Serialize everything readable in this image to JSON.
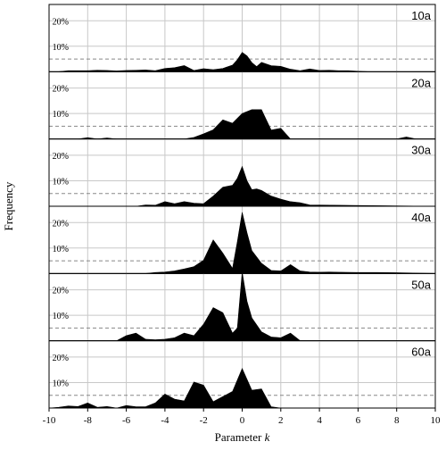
{
  "chart_data": {
    "type": "area",
    "xlabel": "Parameter k",
    "ylabel": "Frequency",
    "xlim": [
      -10,
      10
    ],
    "ylim": [
      0,
      25
    ],
    "x_ticks": [
      -10,
      -8,
      -6,
      -4,
      -2,
      0,
      2,
      4,
      6,
      8,
      10
    ],
    "x_tick_labels": [
      "-10",
      "-8",
      "-6",
      "-4",
      "-2",
      "0",
      "2",
      "4",
      "6",
      "8",
      "10"
    ],
    "y_ticks": [
      10,
      20
    ],
    "y_tick_labels": [
      "10%",
      "20%"
    ],
    "reference_line": 5,
    "grid": true,
    "series_color": "#000000",
    "grid_color": "#c8c8c8",
    "reference_color": "#888888",
    "panels": [
      {
        "label": "10a",
        "x": [
          -10,
          -9.5,
          -9,
          -8.5,
          -8,
          -7.5,
          -7,
          -6.5,
          -6,
          -5.5,
          -5,
          -4.5,
          -4,
          -3.5,
          -3,
          -2.5,
          -2,
          -1.5,
          -1,
          -0.5,
          -0.25,
          0,
          0.25,
          0.5,
          0.75,
          1,
          1.5,
          2,
          2.5,
          3,
          3.5,
          4,
          4.5,
          5,
          5.5,
          6,
          6.5,
          7,
          8,
          9,
          10
        ],
        "values": [
          0,
          0,
          0.4,
          0.4,
          0.4,
          0.6,
          0.5,
          0.3,
          0.5,
          0.6,
          0.7,
          0.4,
          1.3,
          1.6,
          2.4,
          0.5,
          1.2,
          0.8,
          1.3,
          2.6,
          4.7,
          7.6,
          6.2,
          3.6,
          2.0,
          3.7,
          2.4,
          2.1,
          1.0,
          0.4,
          1.1,
          0.5,
          0.6,
          0.4,
          0.4,
          0.2,
          0,
          0,
          0,
          0,
          0
        ]
      },
      {
        "label": "20a",
        "x": [
          -10,
          -8.5,
          -8,
          -7.5,
          -7,
          -6.5,
          -3,
          -2.5,
          -2,
          -1.5,
          -1,
          -0.5,
          0,
          0.5,
          1,
          1.5,
          2,
          2.5,
          8,
          8.5,
          9,
          10
        ],
        "values": [
          0,
          0,
          0.5,
          0,
          0.4,
          0,
          0,
          0.6,
          2.0,
          3.6,
          7.5,
          6.2,
          10.0,
          11.5,
          11.5,
          3.5,
          4.2,
          0,
          0,
          0.8,
          0,
          0
        ]
      },
      {
        "label": "30a",
        "x": [
          -10,
          -5.5,
          -5,
          -4.5,
          -4,
          -3.5,
          -3,
          -2.5,
          -2,
          -1.5,
          -1,
          -0.5,
          -0.25,
          0,
          0.25,
          0.5,
          0.75,
          1,
          1.5,
          2,
          2.5,
          3,
          3.5,
          10
        ],
        "values": [
          0,
          0,
          0.5,
          0.4,
          1.8,
          1.0,
          1.8,
          1.2,
          1.0,
          4.0,
          7.5,
          8.2,
          11.0,
          15.6,
          10.0,
          6.5,
          6.8,
          6.2,
          4.0,
          2.8,
          1.8,
          1.4,
          0.5,
          0
        ]
      },
      {
        "label": "40a",
        "x": [
          -10,
          -5,
          -4.5,
          -4,
          -3.5,
          -3,
          -2.5,
          -2,
          -1.5,
          -1,
          -0.5,
          -0.25,
          0,
          0.25,
          0.5,
          1,
          1.5,
          2,
          2.5,
          3,
          3.5,
          4,
          4.5,
          5,
          6,
          7,
          8,
          10
        ],
        "values": [
          0,
          0,
          0.4,
          0.6,
          1.0,
          1.8,
          2.7,
          5.2,
          13.2,
          8.0,
          2.0,
          12.5,
          24.0,
          16.0,
          9.0,
          4.0,
          1.2,
          1.0,
          3.5,
          1.0,
          0.6,
          0.5,
          0.6,
          0.5,
          0.4,
          0.4,
          0.3,
          0
        ]
      },
      {
        "label": "50a",
        "x": [
          -10,
          -6.5,
          -6,
          -5.5,
          -5,
          -4.5,
          -4,
          -3.5,
          -3,
          -2.5,
          -2,
          -1.5,
          -1,
          -0.5,
          -0.25,
          0,
          0.25,
          0.5,
          1,
          1.5,
          2,
          2.5,
          3,
          10
        ],
        "values": [
          0,
          0,
          2.0,
          3.0,
          0.6,
          0.4,
          0.6,
          1.2,
          3.0,
          2.0,
          6.5,
          13.0,
          11.0,
          3.0,
          5.0,
          27.0,
          15.5,
          9.0,
          3.5,
          1.5,
          1.2,
          3.0,
          0,
          0
        ]
      },
      {
        "label": "60a",
        "x": [
          -10,
          -9.5,
          -9,
          -8.5,
          -8,
          -7.5,
          -7,
          -6.5,
          -6,
          -5.5,
          -5,
          -4.5,
          -4,
          -3.5,
          -3,
          -2.5,
          -2,
          -1.5,
          -1,
          -0.5,
          0,
          0.5,
          1,
          1.5,
          2,
          2.5,
          10
        ],
        "values": [
          0,
          0.3,
          0.8,
          0.6,
          2.0,
          0.3,
          0.6,
          0,
          1.0,
          0.5,
          0.5,
          2.0,
          5.5,
          3.5,
          2.8,
          10.2,
          9.0,
          2.5,
          4.5,
          6.5,
          15.5,
          7.0,
          7.5,
          0.5,
          0,
          0,
          0
        ]
      }
    ]
  }
}
